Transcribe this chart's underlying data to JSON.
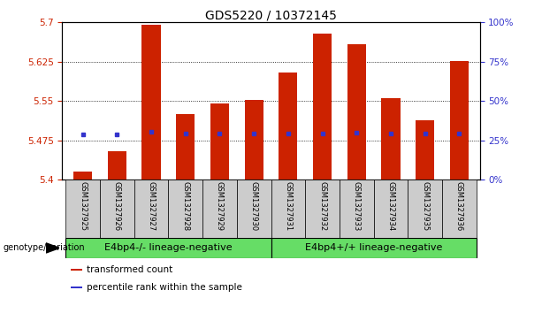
{
  "title": "GDS5220 / 10372145",
  "samples": [
    "GSM1327925",
    "GSM1327926",
    "GSM1327927",
    "GSM1327928",
    "GSM1327929",
    "GSM1327930",
    "GSM1327931",
    "GSM1327932",
    "GSM1327933",
    "GSM1327934",
    "GSM1327935",
    "GSM1327936"
  ],
  "bar_values": [
    5.415,
    5.455,
    5.695,
    5.525,
    5.545,
    5.553,
    5.605,
    5.678,
    5.658,
    5.555,
    5.513,
    5.627
  ],
  "percentile_values": [
    5.487,
    5.487,
    5.492,
    5.488,
    5.488,
    5.488,
    5.489,
    5.489,
    5.49,
    5.489,
    5.489,
    5.489
  ],
  "bar_color": "#cc2200",
  "percentile_color": "#3333cc",
  "y_min": 5.4,
  "y_max": 5.7,
  "y_ticks": [
    5.4,
    5.475,
    5.55,
    5.625,
    5.7
  ],
  "right_y_ticks": [
    0,
    25,
    50,
    75,
    100
  ],
  "right_y_labels": [
    "0%",
    "25%",
    "50%",
    "75%",
    "100%"
  ],
  "group1_label": "E4bp4-/- lineage-negative",
  "group2_label": "E4bp4+/+ lineage-negative",
  "group1_indices": [
    0,
    1,
    2,
    3,
    4,
    5
  ],
  "group2_indices": [
    6,
    7,
    8,
    9,
    10,
    11
  ],
  "group_bg_color": "#66dd66",
  "sample_bg_color": "#cccccc",
  "legend_red_label": "transformed count",
  "legend_blue_label": "percentile rank within the sample",
  "genotype_label": "genotype/variation",
  "bar_width": 0.55,
  "title_fontsize": 10,
  "tick_fontsize": 7.5,
  "sample_fontsize": 6,
  "group_fontsize": 8,
  "legend_fontsize": 7.5
}
